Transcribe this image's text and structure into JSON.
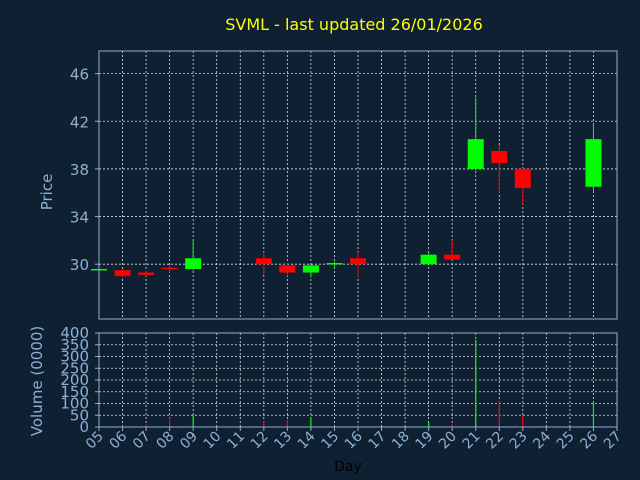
{
  "chart_data": {
    "type": "candlestick",
    "title": "SVML - last updated 26/01/2026",
    "xlabel": "Day",
    "price_ylabel": "Price",
    "volume_ylabel": "Volume (0000)",
    "x_ticks": [
      "05",
      "06",
      "07",
      "08",
      "09",
      "10",
      "11",
      "12",
      "13",
      "14",
      "15",
      "16",
      "17",
      "18",
      "19",
      "20",
      "21",
      "22",
      "23",
      "24",
      "25",
      "26",
      "27"
    ],
    "price_ylim": [
      25.4,
      47.9
    ],
    "price_ticks": [
      30,
      34,
      38,
      42,
      46
    ],
    "volume_ylim": [
      0,
      400
    ],
    "volume_ticks": [
      0,
      50,
      100,
      150,
      200,
      250,
      300,
      350,
      400
    ],
    "grid": true,
    "colors": {
      "background": "#0f2033",
      "up": "#00ff00",
      "down": "#ff0000",
      "grid": "#ffffff",
      "title": "#ffff00",
      "text": "#8fb0d0"
    },
    "candles": [
      {
        "day": "05",
        "open": 29.5,
        "high": 29.6,
        "low": 29.4,
        "close": 29.6,
        "volume": 2
      },
      {
        "day": "06",
        "open": 29.5,
        "high": 29.6,
        "low": 28.9,
        "close": 29.0,
        "volume": 4
      },
      {
        "day": "07",
        "open": 29.3,
        "high": 29.4,
        "low": 29.0,
        "close": 29.1,
        "volume": 10
      },
      {
        "day": "08",
        "open": 29.7,
        "high": 29.9,
        "low": 29.3,
        "close": 29.6,
        "volume": 40
      },
      {
        "day": "09",
        "open": 29.6,
        "high": 32.0,
        "low": 29.5,
        "close": 30.5,
        "volume": 50
      },
      {
        "day": "12",
        "open": 30.5,
        "high": 31.0,
        "low": 29.1,
        "close": 30.0,
        "volume": 25
      },
      {
        "day": "13",
        "open": 29.9,
        "high": 30.1,
        "low": 29.0,
        "close": 29.3,
        "volume": 30
      },
      {
        "day": "14",
        "open": 29.3,
        "high": 29.9,
        "low": 28.9,
        "close": 29.9,
        "volume": 40
      },
      {
        "day": "15",
        "open": 30.0,
        "high": 30.2,
        "low": 29.8,
        "close": 30.1,
        "volume": 5
      },
      {
        "day": "16",
        "open": 30.5,
        "high": 31.0,
        "low": 28.9,
        "close": 30.0,
        "volume": 10
      },
      {
        "day": "19",
        "open": 30.0,
        "high": 30.9,
        "low": 29.9,
        "close": 30.8,
        "volume": 20
      },
      {
        "day": "20",
        "open": 30.8,
        "high": 32.0,
        "low": 30.4,
        "close": 30.4,
        "volume": 12
      },
      {
        "day": "21",
        "open": 38.0,
        "high": 44.0,
        "low": 37.9,
        "close": 40.5,
        "volume": 370
      },
      {
        "day": "22",
        "open": 39.5,
        "high": 40.0,
        "low": 36.0,
        "close": 38.5,
        "volume": 110
      },
      {
        "day": "23",
        "open": 38.0,
        "high": 38.1,
        "low": 35.0,
        "close": 36.4,
        "volume": 50
      },
      {
        "day": "26",
        "open": 36.5,
        "high": 41.7,
        "low": 36.0,
        "close": 40.5,
        "volume": 110
      }
    ]
  }
}
